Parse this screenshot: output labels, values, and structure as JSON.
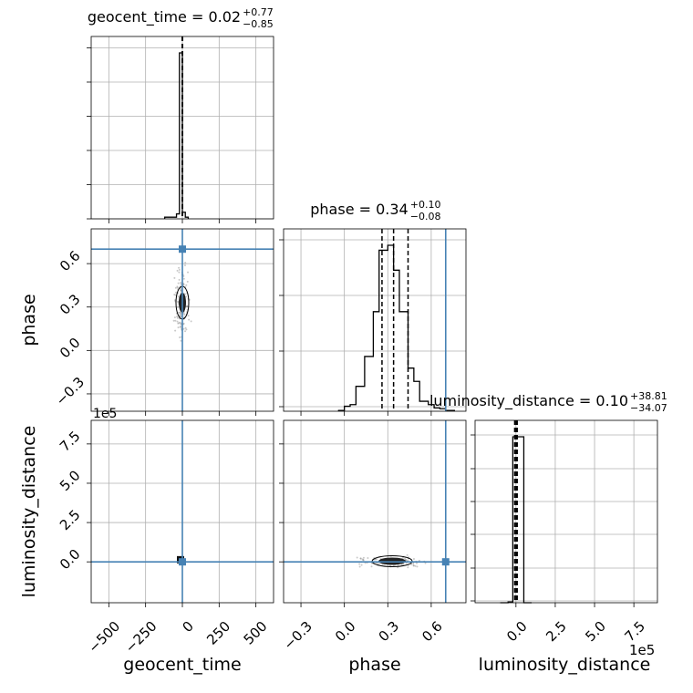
{
  "chart_data": {
    "type": "corner",
    "grid": true,
    "parameters": [
      "geocent_time",
      "phase",
      "luminosity_distance"
    ],
    "panels": {
      "geocent_time_hist": {
        "title_name": "geocent_time",
        "median": "0.02",
        "plus": "+0.77",
        "minus": "−0.85",
        "xlim": [
          -620,
          620
        ],
        "bins": [
          [
            -120,
            -40,
            0.01
          ],
          [
            -40,
            -20,
            0.03
          ],
          [
            -20,
            0,
            1.0
          ],
          [
            0,
            20,
            0.04
          ],
          [
            20,
            40,
            0.01
          ]
        ],
        "quantile_lines": [
          -0.83,
          0.02,
          0.79
        ]
      },
      "phase_hist": {
        "title_name": "phase",
        "median": "0.34",
        "plus": "+0.10",
        "minus": "−0.08",
        "xlim": [
          -0.42,
          0.84
        ],
        "bins": [
          [
            -0.04,
            0.0,
            0.005
          ],
          [
            0.0,
            0.04,
            0.03
          ],
          [
            0.04,
            0.08,
            0.04
          ],
          [
            0.08,
            0.14,
            0.15
          ],
          [
            0.14,
            0.2,
            0.33
          ],
          [
            0.2,
            0.24,
            0.6
          ],
          [
            0.24,
            0.3,
            0.97
          ],
          [
            0.3,
            0.34,
            1.0
          ],
          [
            0.34,
            0.38,
            0.85
          ],
          [
            0.38,
            0.44,
            0.6
          ],
          [
            0.44,
            0.48,
            0.26
          ],
          [
            0.48,
            0.52,
            0.18
          ],
          [
            0.52,
            0.58,
            0.06
          ],
          [
            0.58,
            0.62,
            0.04
          ],
          [
            0.62,
            0.66,
            0.02
          ],
          [
            0.66,
            0.7,
            0.015
          ],
          [
            0.7,
            0.76,
            0.005
          ]
        ],
        "quantile_lines": [
          0.26,
          0.34,
          0.44
        ],
        "truth": 0.7
      },
      "luminosity_distance_hist": {
        "title_name": "luminosity_distance",
        "median": "0.10",
        "plus": "+38.81",
        "minus": "−34.07",
        "xlim": [
          -2.6,
          9.0
        ],
        "bins": [
          [
            -1.0,
            -0.5,
            0.0
          ],
          [
            -0.5,
            -0.2,
            0.005
          ],
          [
            -0.2,
            0.5,
            1.0
          ],
          [
            0.5,
            1.0,
            0.0
          ]
        ],
        "quantile_lines": [
          -0.08,
          0.0,
          0.08
        ]
      }
    },
    "truths": {
      "geocent_time": 0,
      "phase": 0.7,
      "luminosity_distance": 0
    },
    "medians": {
      "geocent_time": 0.02,
      "phase": 0.34,
      "luminosity_distance": 0.1
    },
    "axes": {
      "geocent_time": {
        "lim": [
          -620,
          620
        ],
        "ticks": [
          -500,
          -250,
          0,
          250,
          500
        ],
        "tick_labels": [
          "−500",
          "−250",
          "0",
          "250",
          "500"
        ]
      },
      "phase": {
        "lim": [
          -0.42,
          0.84
        ],
        "ticks": [
          -0.3,
          0.0,
          0.3,
          0.6
        ],
        "tick_labels": [
          "−0.3",
          "0.0",
          "0.3",
          "0.6"
        ]
      },
      "luminosity_distance": {
        "lim": [
          -2.6,
          9.0
        ],
        "ticks": [
          0,
          2.5,
          5,
          7.5
        ],
        "tick_labels": [
          "0.0",
          "2.5",
          "5.0",
          "7.5"
        ],
        "offset_label": "1e5"
      }
    },
    "xlabels": [
      "geocent_time",
      "phase",
      "luminosity_distance"
    ],
    "ylabels": [
      "phase",
      "luminosity_distance"
    ],
    "colors": {
      "truth": "#4682b4",
      "line": "#000000",
      "grid": "#b0b0b0"
    }
  }
}
